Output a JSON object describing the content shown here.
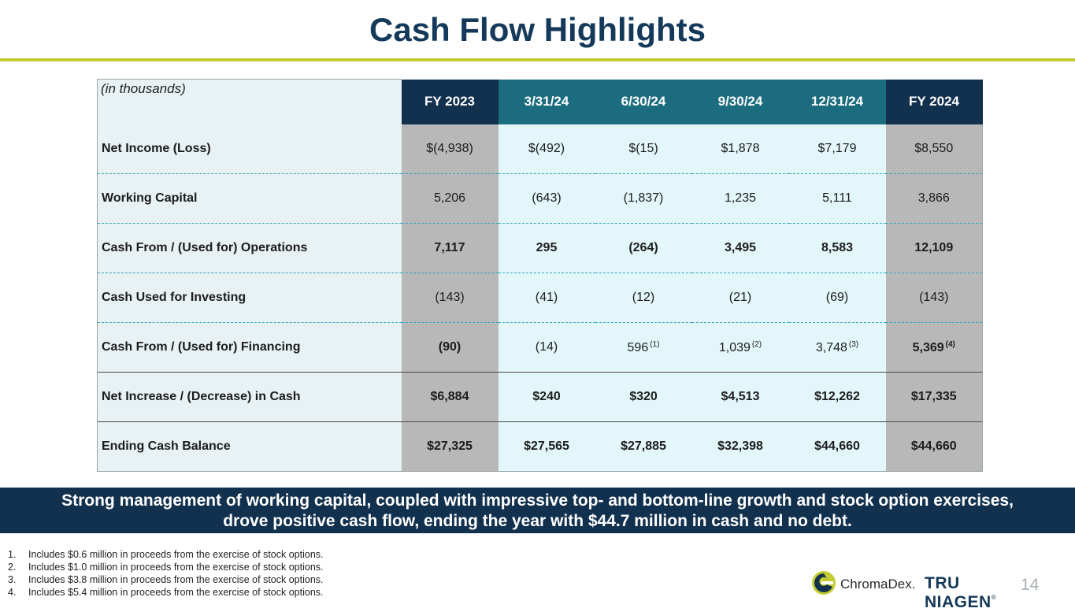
{
  "title": "Cash Flow Highlights",
  "table": {
    "units": "(in thousands)",
    "headers": [
      "FY 2023",
      "3/31/24",
      "6/30/24",
      "9/30/24",
      "12/31/24",
      "FY 2024"
    ],
    "rows": [
      {
        "label": "Net Income (Loss)",
        "values": [
          "$(4,938)",
          "$(492)",
          "$(15)",
          "$1,878",
          "$7,179",
          "$8,550"
        ]
      },
      {
        "label": "Working Capital",
        "values": [
          "5,206",
          "(643)",
          "(1,837)",
          "1,235",
          "5,111",
          "3,866"
        ]
      },
      {
        "label": "Cash From / (Used for) Operations",
        "values": [
          "7,117",
          "295",
          "(264)",
          "3,495",
          "8,583",
          "12,109"
        ]
      },
      {
        "label": "Cash Used for Investing",
        "values": [
          "(143)",
          "(41)",
          "(12)",
          "(21)",
          "(69)",
          "(143)"
        ]
      },
      {
        "label": "Cash From / (Used for) Financing",
        "values": [
          "(90)",
          "(14)",
          "596",
          "1,039",
          "3,748",
          "5,369"
        ],
        "notes": [
          "",
          "",
          "(1)",
          "(2)",
          "(3)",
          "(4)"
        ]
      },
      {
        "label": "Net Increase / (Decrease) in Cash",
        "values": [
          "$6,884",
          "$240",
          "$320",
          "$4,513",
          "$12,262",
          "$17,335"
        ]
      },
      {
        "label": "Ending Cash Balance",
        "values": [
          "$27,325",
          "$27,565",
          "$27,885",
          "$32,398",
          "$44,660",
          "$44,660"
        ]
      }
    ]
  },
  "banner": {
    "line1": "Strong management of working capital, coupled with impressive top- and bottom-line growth and stock option exercises,",
    "line2": "drove positive cash flow, ending the year with $44.7 million in cash and no debt."
  },
  "footnotes": [
    {
      "num": "1.",
      "text": "Includes $0.6 million in proceeds from the exercise of stock options."
    },
    {
      "num": "2.",
      "text": "Includes $1.0 million in proceeds from the exercise of stock options."
    },
    {
      "num": "3.",
      "text": "Includes $3.8 million in proceeds from the exercise of stock options."
    },
    {
      "num": "4.",
      "text": "Includes $5.4 million in proceeds from the exercise of stock options."
    }
  ],
  "logo": {
    "brand1": "ChromaDex.",
    "brand2": "TRU NIAGEN",
    "reg": "®",
    "icon": "chromadex-logo-icon"
  },
  "page_number": "14",
  "colors": {
    "navy": "#12314f",
    "teal": "#1b6c7f",
    "accent_rule": "#c3cd31",
    "gray_col": "#b8b8b8",
    "light_col": "#e3f6fa"
  }
}
